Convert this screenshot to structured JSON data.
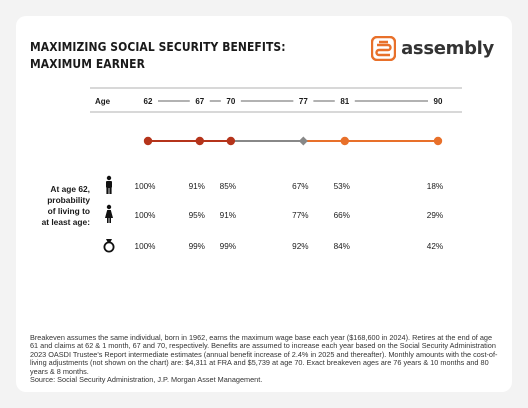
{
  "header": {
    "title_line1": "MAXIMIZING SOCIAL SECURITY BENEFITS:",
    "title_line2": "MAXIMUM EARNER",
    "brand_name": "assembly"
  },
  "colors": {
    "accent": "#e8702a",
    "dark_red": "#b5341b",
    "gray": "#888888",
    "text": "#1a1a1a"
  },
  "chart_data": {
    "type": "table",
    "age_axis_label": "Age",
    "ages": [
      62,
      67,
      70,
      77,
      81,
      90
    ],
    "markers": [
      {
        "age": 62,
        "shape": "circle",
        "color": "#b5341b"
      },
      {
        "age": 67,
        "shape": "circle",
        "color": "#b5341b"
      },
      {
        "age": 70,
        "shape": "circle",
        "color": "#b5341b"
      },
      {
        "age": 77,
        "shape": "diamond",
        "color": "#888888"
      },
      {
        "age": 81,
        "shape": "circle",
        "color": "#e8702a"
      },
      {
        "age": 90,
        "shape": "circle",
        "color": "#e8702a"
      }
    ],
    "row_label_lines": [
      "At age 62,",
      "probability",
      "of living to",
      "at least age:"
    ],
    "rows": [
      {
        "icon": "male-icon",
        "values": [
          "100%",
          "91%",
          "85%",
          "67%",
          "53%",
          "18%"
        ]
      },
      {
        "icon": "female-icon",
        "values": [
          "100%",
          "95%",
          "91%",
          "77%",
          "66%",
          "29%"
        ]
      },
      {
        "icon": "ring-icon",
        "values": [
          "100%",
          "99%",
          "99%",
          "92%",
          "84%",
          "42%"
        ]
      }
    ]
  },
  "footnote": {
    "paragraph": "Breakeven assumes the same individual, born in 1962, earns the maximum wage base each year ($168,600 in 2024). Retires at the end of age 61 and claims at 62 & 1 month, 67 and 70, respectively. Benefits are assumed to increase each year based on the Social Security Administration 2023 OASDI Trustee's Report intermediate estimates (annual benefit increase of 2.4% in 2025 and thereafter). Monthly amounts with the cost-of-living adjustments (not shown on the chart) are: $4,311 at FRA and $5,739 at age 70. Exact breakeven ages are 76 years & 10 months and 80 years & 8 months.",
    "source": "Source: Social Security Administration, J.P. Morgan Asset Management."
  }
}
